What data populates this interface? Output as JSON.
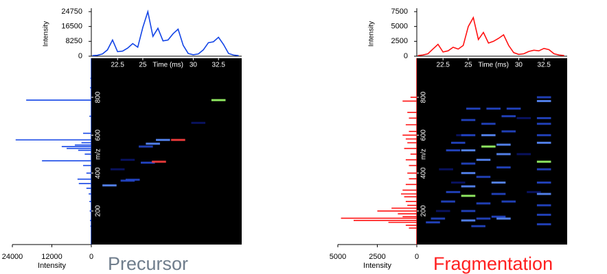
{
  "chart_data": [
    {
      "type": "line",
      "ylabel": "Intensity",
      "x": [
        20,
        20.5,
        21,
        21.5,
        22,
        22.5,
        23,
        23.5,
        24,
        24.5,
        25,
        25.5,
        26,
        26.5,
        27,
        27.5,
        28,
        28.5,
        29,
        29.5,
        30,
        30.5,
        31,
        31.5,
        32,
        32.5,
        33,
        33.5,
        34,
        34.5
      ],
      "series": [
        {
          "color": "#1244e6",
          "values": [
            300,
            500,
            1200,
            3500,
            9000,
            2500,
            2800,
            4500,
            7000,
            5000,
            16000,
            24750,
            11000,
            15500,
            8500,
            9000,
            12500,
            15000,
            6000,
            1500,
            800,
            1200,
            3500,
            7500,
            8000,
            10500,
            6500,
            1500,
            600,
            300
          ]
        }
      ],
      "xlim": [
        19.9,
        34.8
      ],
      "ylim": [
        0,
        24750
      ],
      "yticks": [
        0,
        8250,
        16500,
        24750
      ]
    },
    {
      "type": "bar",
      "orientation": "horizontal",
      "xlabel": "Intensity",
      "color": "#1244e6",
      "y": [
        785,
        610,
        575,
        560,
        548,
        540,
        530,
        520,
        500,
        465,
        440,
        400,
        368,
        345,
        320,
        290,
        250,
        200,
        150,
        120,
        700,
        850,
        900
      ],
      "values": [
        19800,
        2500,
        23000,
        3000,
        5000,
        9000,
        7500,
        4000,
        2000,
        15000,
        2500,
        1500,
        4200,
        3800,
        1500,
        800,
        600,
        500,
        400,
        300,
        600,
        400,
        300
      ],
      "xlim": [
        24000,
        0
      ],
      "xticks": [
        0,
        12000,
        24000
      ],
      "ylim": [
        23,
        1006
      ]
    },
    {
      "type": "heatmap",
      "title": "Precursor",
      "xlabel": "Time (ms)",
      "ylabel": "m/z",
      "x": [
        21.7,
        23.5,
        24,
        22.5,
        23.5,
        25.5,
        26.6,
        25.3,
        26,
        27,
        28.5,
        30.5,
        32.5
      ],
      "y": [
        335,
        360,
        365,
        420,
        470,
        455,
        460,
        540,
        555,
        575,
        575,
        665,
        785
      ],
      "values": [
        3,
        2,
        2,
        1,
        1,
        2,
        5,
        2,
        3,
        3,
        5,
        1,
        4
      ],
      "colors": [
        "#0a1468",
        "#2446c8",
        "#5a8cff",
        "#9dff6a",
        "#ff4040"
      ],
      "zlim": [
        1,
        5
      ],
      "xlim": [
        19.9,
        34.8
      ],
      "ylim": [
        23,
        1006
      ],
      "xticks": [
        22.5,
        25,
        30,
        32.5
      ],
      "yticks": [
        200,
        400,
        600,
        800
      ]
    },
    {
      "type": "line",
      "ylabel": "Intensity",
      "x": [
        20,
        20.5,
        21,
        21.5,
        22,
        22.5,
        23,
        23.5,
        24,
        24.5,
        25,
        25.5,
        26,
        26.5,
        27,
        27.5,
        28,
        28.5,
        29,
        29.5,
        30,
        30.5,
        31,
        31.5,
        32,
        32.5,
        33,
        33.5,
        34,
        34.5
      ],
      "series": [
        {
          "color": "#ff1010",
          "values": [
            100,
            200,
            400,
            1200,
            2000,
            700,
            900,
            1500,
            1200,
            1800,
            5000,
            6500,
            2800,
            4000,
            2200,
            2500,
            3000,
            3600,
            1800,
            600,
            300,
            400,
            800,
            1000,
            900,
            1300,
            1100,
            400,
            200,
            100
          ]
        }
      ],
      "xlim": [
        19.9,
        34.8
      ],
      "ylim": [
        0,
        7500
      ],
      "yticks": [
        0,
        2500,
        5000,
        7500
      ]
    },
    {
      "type": "bar",
      "orientation": "horizontal",
      "xlabel": "Intensity",
      "color": "#ff1010",
      "y": [
        800,
        780,
        720,
        690,
        655,
        620,
        600,
        580,
        560,
        530,
        500,
        470,
        440,
        400,
        370,
        340,
        310,
        290,
        275,
        250,
        230,
        215,
        200,
        185,
        170,
        162,
        150,
        140,
        125,
        110
      ],
      "values": [
        400,
        900,
        600,
        500,
        700,
        500,
        900,
        700,
        600,
        800,
        400,
        700,
        500,
        600,
        500,
        700,
        900,
        1000,
        800,
        700,
        600,
        1600,
        2500,
        1200,
        900,
        4800,
        4000,
        1800,
        700,
        500
      ],
      "xlim": [
        5000,
        0
      ],
      "xticks": [
        0,
        2500,
        5000
      ],
      "ylim": [
        23,
        1006
      ]
    },
    {
      "type": "heatmap",
      "title": "Fragmentation",
      "xlabel": "Time (ms)",
      "ylabel": "m/z",
      "x": [
        21.5,
        22,
        22.5,
        23,
        23.5,
        24,
        22.8,
        23.5,
        24,
        24.5,
        25,
        25,
        25,
        25,
        25,
        25,
        25,
        25,
        25,
        25.5,
        26.5,
        26.5,
        26.5,
        26.5,
        27,
        27,
        27,
        27.5,
        28,
        28,
        28,
        28.5,
        28.5,
        28.5,
        29,
        29,
        29.5,
        28.5,
        26,
        29,
        30.5,
        30.5,
        31.5,
        32.5,
        32.5,
        32.5,
        32.5,
        32.5,
        32.5,
        32.5,
        32.5,
        32.5,
        32.5,
        32.5,
        32.5,
        32.5
      ],
      "y": [
        140,
        160,
        200,
        250,
        300,
        350,
        420,
        520,
        560,
        600,
        150,
        200,
        280,
        330,
        400,
        450,
        520,
        600,
        680,
        740,
        160,
        240,
        380,
        470,
        540,
        600,
        660,
        740,
        170,
        290,
        350,
        430,
        500,
        550,
        620,
        700,
        740,
        160,
        120,
        250,
        690,
        500,
        300,
        130,
        180,
        230,
        290,
        350,
        420,
        460,
        560,
        600,
        660,
        690,
        780,
        800
      ],
      "values": [
        2,
        2,
        1,
        2,
        2,
        1,
        1,
        2,
        2,
        1,
        3,
        2,
        4,
        3,
        3,
        2,
        3,
        2,
        2,
        2,
        2,
        2,
        2,
        3,
        4,
        3,
        2,
        2,
        2,
        2,
        3,
        2,
        3,
        3,
        2,
        2,
        2,
        3,
        2,
        2,
        1,
        1,
        1,
        2,
        2,
        2,
        3,
        2,
        2,
        4,
        3,
        2,
        2,
        2,
        3,
        2
      ],
      "colors": [
        "#0a1468",
        "#2446c8",
        "#5a8cff",
        "#9dff6a",
        "#ff4040"
      ],
      "zlim": [
        1,
        5
      ],
      "xlim": [
        19.9,
        34.8
      ],
      "ylim": [
        23,
        1006
      ],
      "xticks": [
        22.5,
        25,
        30,
        32.5
      ],
      "yticks": [
        200,
        400,
        600,
        800
      ]
    }
  ]
}
